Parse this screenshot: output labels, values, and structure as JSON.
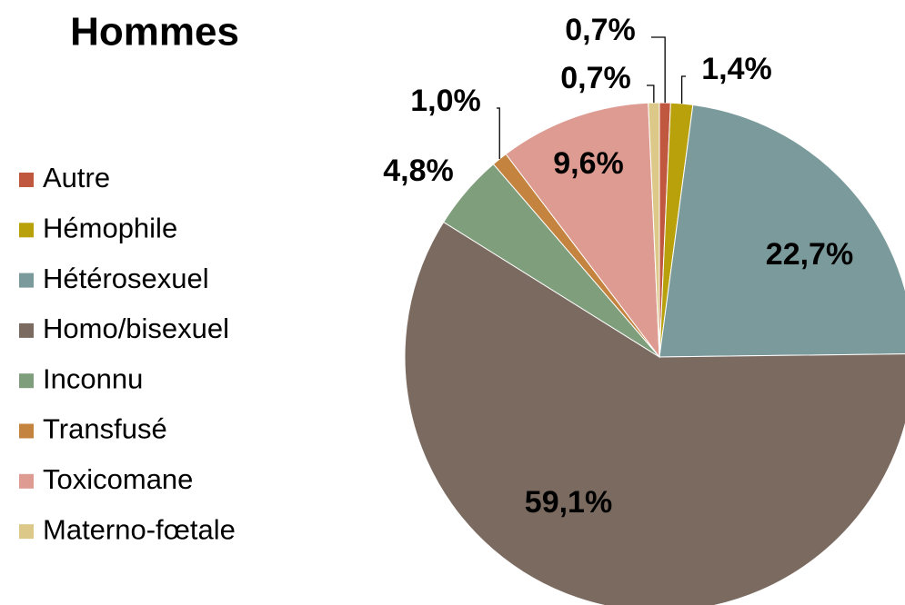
{
  "chart_data": {
    "type": "pie",
    "title": "Hommes",
    "categories": [
      "Autre",
      "Hémophile",
      "Hétérosexuel",
      "Homo/bisexuel",
      "Inconnu",
      "Transfusé",
      "Toxicomane",
      "Materno-fœtale"
    ],
    "values": [
      0.7,
      1.4,
      22.7,
      59.1,
      4.8,
      1.0,
      9.6,
      0.7
    ],
    "value_labels": [
      "0,7%",
      "1,4%",
      "22,7%",
      "59,1%",
      "4,8%",
      "1,0%",
      "9,6%",
      "0,7%"
    ],
    "colors": [
      "#c0583f",
      "#b9a10c",
      "#7a9a9b",
      "#7a6a60",
      "#7f9e7c",
      "#c4843f",
      "#de9b92",
      "#dcc98a"
    ],
    "legend": "left"
  }
}
